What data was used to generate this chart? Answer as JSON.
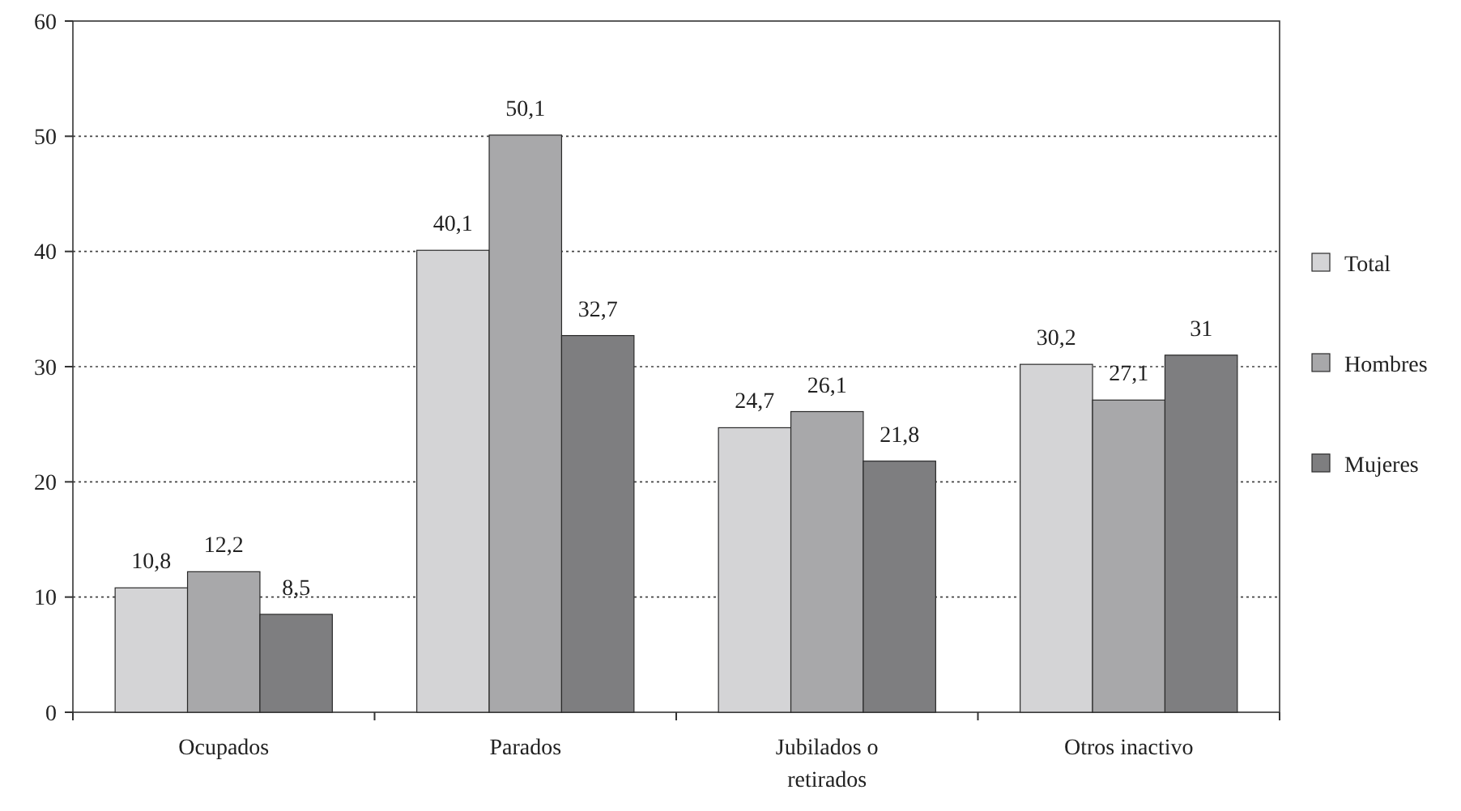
{
  "chart_data": {
    "type": "bar",
    "categories": [
      "Ocupados",
      "Parados",
      "Jubilados o retirados",
      "Otros inactivo"
    ],
    "series": [
      {
        "name": "Total",
        "color": "#d4d4d6",
        "values": [
          10.8,
          40.1,
          24.7,
          30.2
        ],
        "value_labels": [
          "10,8",
          "40,1",
          "24,7",
          "30,2"
        ]
      },
      {
        "name": "Hombres",
        "color": "#a8a8aa",
        "values": [
          12.2,
          50.1,
          26.1,
          27.1
        ],
        "value_labels": [
          "12,2",
          "50,1",
          "26,1",
          "27,1"
        ]
      },
      {
        "name": "Mujeres",
        "color": "#7e7e80",
        "values": [
          8.5,
          32.7,
          21.8,
          31
        ],
        "value_labels": [
          "8,5",
          "32,7",
          "21,8",
          "31"
        ]
      }
    ],
    "ylim": [
      0,
      60
    ],
    "yticks": [
      0,
      10,
      20,
      30,
      40,
      50,
      60
    ],
    "grid": "y",
    "line_style": "dotted",
    "legend": "right"
  }
}
